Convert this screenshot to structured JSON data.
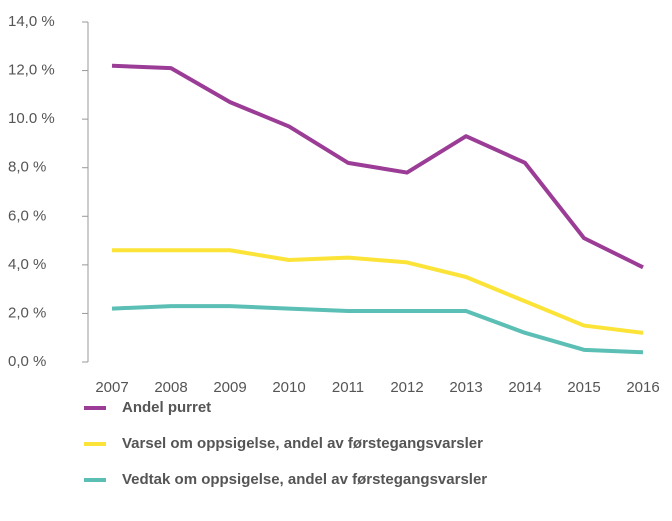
{
  "chart_data": {
    "type": "line",
    "categories": [
      "2007",
      "2008",
      "2009",
      "2010",
      "2011",
      "2012",
      "2013",
      "2014",
      "2015",
      "2016"
    ],
    "series": [
      {
        "name": "Andel purret",
        "color": "#9b3d96",
        "values": [
          12.2,
          12.1,
          10.7,
          9.7,
          8.2,
          7.8,
          9.3,
          8.2,
          5.1,
          3.9
        ]
      },
      {
        "name": "Varsel om oppsigelse, andel av førstegangsvarsler",
        "color": "#fbe338",
        "values": [
          4.6,
          4.6,
          4.6,
          4.2,
          4.3,
          4.1,
          3.5,
          2.5,
          1.5,
          1.2
        ]
      },
      {
        "name": "Vedtak om oppsigelse, andel av førstegangsvarsler",
        "color": "#5bbfb5",
        "values": [
          2.2,
          2.3,
          2.3,
          2.2,
          2.1,
          2.1,
          2.1,
          1.2,
          0.5,
          0.4
        ]
      }
    ],
    "ylim": [
      0,
      14
    ],
    "yticks": [
      {
        "value": 0,
        "label": "0,0 %"
      },
      {
        "value": 2,
        "label": "2,0 %"
      },
      {
        "value": 4,
        "label": "4,0 %"
      },
      {
        "value": 6,
        "label": "6,0 %"
      },
      {
        "value": 8,
        "label": "8,0 %"
      },
      {
        "value": 10,
        "label": "10.0 %"
      },
      {
        "value": 12,
        "label": "12,0 %"
      },
      {
        "value": 14,
        "label": "14,0 %"
      }
    ],
    "legend": "bottom"
  }
}
